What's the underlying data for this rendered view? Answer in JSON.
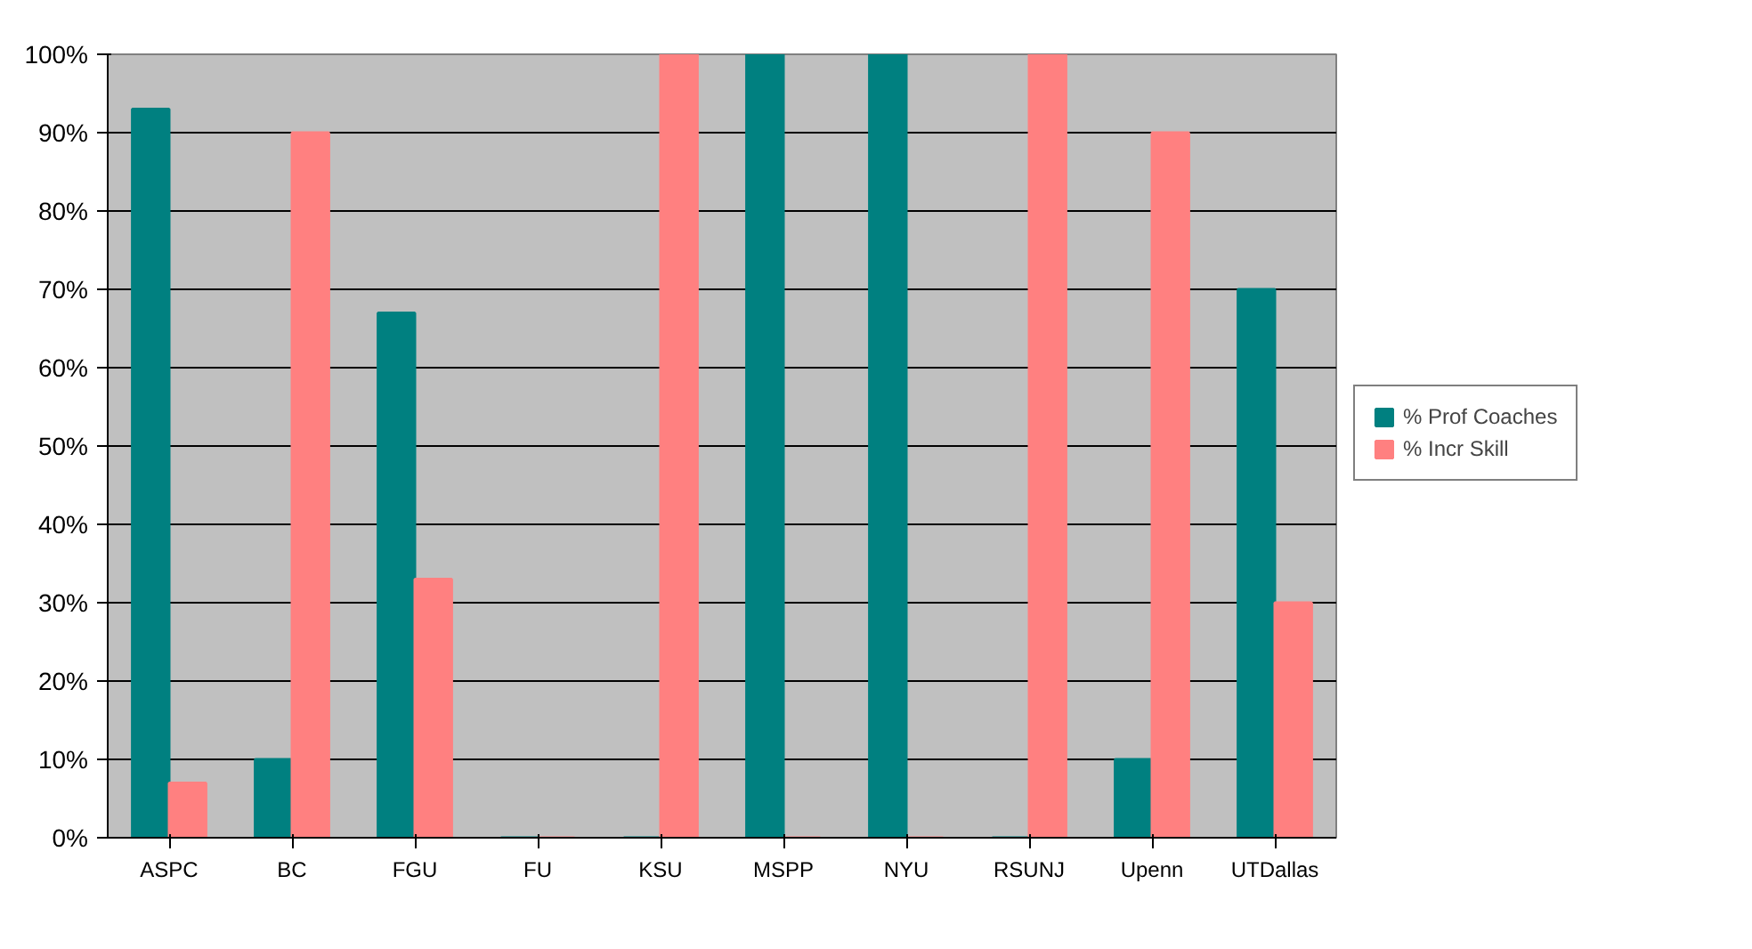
{
  "chart_data": {
    "type": "bar",
    "categories": [
      "ASPC",
      "BC",
      "FGU",
      "FU",
      "KSU",
      "MSPP",
      "NYU",
      "RSUNJ",
      "Upenn",
      "UTDallas"
    ],
    "series": [
      {
        "name": "% Prof Coaches",
        "color": "#008080",
        "values": [
          93,
          10,
          67,
          0,
          0,
          100,
          100,
          0,
          10,
          70
        ]
      },
      {
        "name": "% Incr Skill",
        "color": "#ff8080",
        "values": [
          7,
          90,
          33,
          0,
          100,
          0,
          0,
          100,
          90,
          30
        ]
      }
    ],
    "ylim": [
      0,
      100
    ],
    "yticks": [
      {
        "value": 0,
        "label": "0%"
      },
      {
        "value": 10,
        "label": "10%"
      },
      {
        "value": 20,
        "label": "20%"
      },
      {
        "value": 30,
        "label": "30%"
      },
      {
        "value": 40,
        "label": "40%"
      },
      {
        "value": 50,
        "label": "50%"
      },
      {
        "value": 60,
        "label": "60%"
      },
      {
        "value": 70,
        "label": "70%"
      },
      {
        "value": 80,
        "label": "80%"
      },
      {
        "value": 90,
        "label": "90%"
      },
      {
        "value": 100,
        "label": "100%"
      }
    ],
    "grid": "y",
    "legend": "right"
  }
}
